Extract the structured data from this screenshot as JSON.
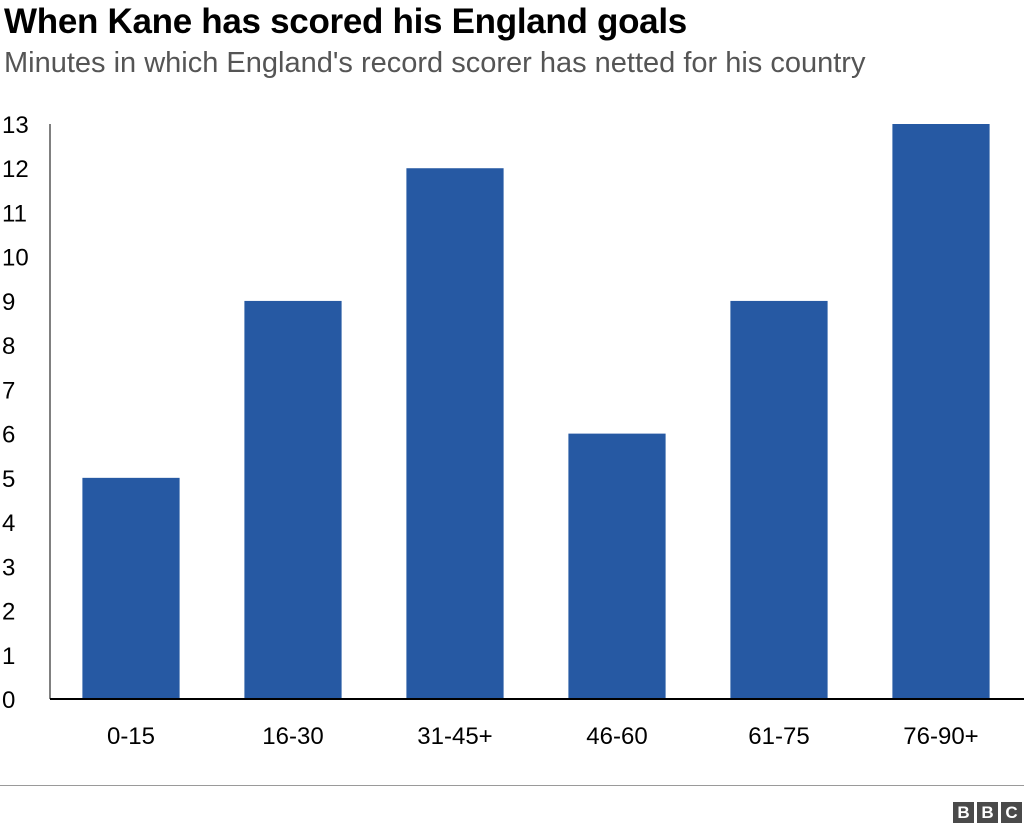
{
  "header": {
    "title": "When Kane has scored his England goals",
    "subtitle": "Minutes in which England's record scorer has netted for his country"
  },
  "source_logo": {
    "text": "BBC",
    "letters": [
      "B",
      "B",
      "C"
    ]
  },
  "colors": {
    "bar": "#2659A3",
    "axis": "#000000",
    "text": "#000000",
    "subtitle": "#555555"
  },
  "chart_data": {
    "type": "bar",
    "title": "When Kane has scored his England goals",
    "subtitle": "Minutes in which England's record scorer has netted for his country",
    "categories": [
      "0-15",
      "16-30",
      "31-45+",
      "46-60",
      "61-75",
      "76-90+"
    ],
    "values": [
      5,
      9,
      12,
      6,
      9,
      13
    ],
    "xlabel": "",
    "ylabel": "",
    "ylim": [
      0,
      13
    ],
    "yticks": [
      0,
      1,
      2,
      3,
      4,
      5,
      6,
      7,
      8,
      9,
      10,
      11,
      12,
      13
    ],
    "grid": false,
    "legend": "none"
  }
}
